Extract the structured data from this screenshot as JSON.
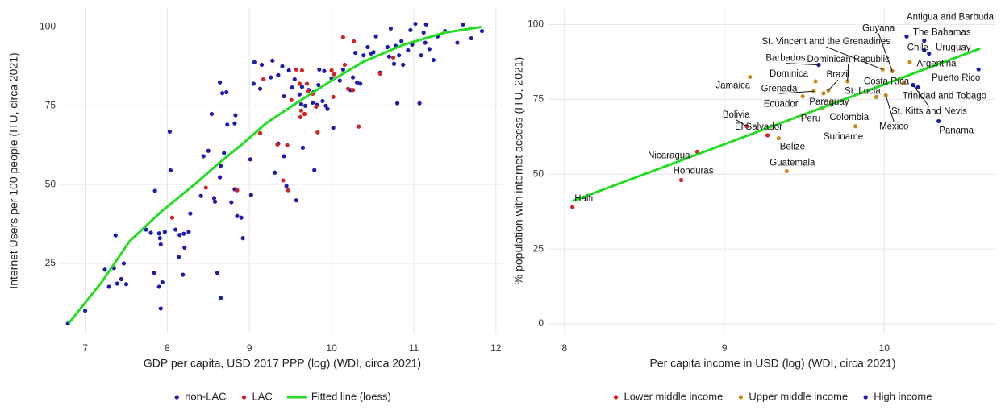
{
  "chart_data": [
    {
      "type": "scatter",
      "xlabel": "GDP per capita, USD 2017 PPP (log) (WDI, circa 2021)",
      "ylabel": "Internet Users per 100 people (ITU, circa 2021)",
      "xlim": [
        6.7,
        12.1
      ],
      "ylim": [
        2.5,
        106
      ],
      "xticks": [
        7,
        8,
        9,
        10,
        11,
        12
      ],
      "yticks": [
        25,
        50,
        75,
        100
      ],
      "grid": true,
      "series": [
        {
          "name": "non-LAC",
          "color": "#1c1cb0",
          "x": [
            6.79,
            7.0,
            7.24,
            7.29,
            7.35,
            7.37,
            7.39,
            7.44,
            7.47,
            7.5,
            7.74,
            7.8,
            7.84,
            7.85,
            7.9,
            7.9,
            7.91,
            7.92,
            7.92,
            7.94,
            7.97,
            8.03,
            8.04,
            8.1,
            8.14,
            8.15,
            8.19,
            8.2,
            8.21,
            8.26,
            8.28,
            8.41,
            8.44,
            8.5,
            8.54,
            8.57,
            8.58,
            8.61,
            8.64,
            8.64,
            8.65,
            8.65,
            8.67,
            8.69,
            8.72,
            8.73,
            8.78,
            8.82,
            8.82,
            8.83,
            8.85,
            8.9,
            8.92,
            9.01,
            9.02,
            9.05,
            9.06,
            9.13,
            9.15,
            9.26,
            9.28,
            9.31,
            9.35,
            9.35,
            9.4,
            9.42,
            9.42,
            9.45,
            9.48,
            9.52,
            9.55,
            9.57,
            9.61,
            9.63,
            9.64,
            9.65,
            9.68,
            9.72,
            9.77,
            9.78,
            9.79,
            9.82,
            9.84,
            9.85,
            9.89,
            9.91,
            9.93,
            9.95,
            10.0,
            10.02,
            10.1,
            10.14,
            10.23,
            10.26,
            10.29,
            10.31,
            10.35,
            10.39,
            10.44,
            10.48,
            10.51,
            10.54,
            10.59,
            10.68,
            10.7,
            10.72,
            10.76,
            10.78,
            10.8,
            10.82,
            10.85,
            10.87,
            10.93,
            10.96,
            10.98,
            11.02,
            11.07,
            11.09,
            11.12,
            11.14,
            11.15,
            11.19,
            11.24,
            11.29,
            11.38,
            11.53,
            11.6,
            11.7,
            11.83
          ],
          "values": [
            5.9,
            10,
            23,
            17.6,
            23.5,
            33.9,
            18.6,
            20,
            25,
            18.4,
            35.7,
            34.7,
            22,
            48,
            34.5,
            17.6,
            33,
            10.7,
            31,
            19,
            35,
            66.8,
            54.5,
            35.7,
            27,
            34,
            21.4,
            34.4,
            30,
            35,
            40.8,
            46.4,
            59,
            60.7,
            72.4,
            45.7,
            44.6,
            22,
            52.3,
            82.4,
            14,
            56,
            79,
            60,
            79.3,
            69,
            44.4,
            69.4,
            48.5,
            72,
            40,
            39.5,
            33,
            58,
            46.7,
            82,
            88.8,
            80.4,
            88,
            84,
            89.3,
            53.8,
            84.7,
            63,
            87.5,
            78,
            59,
            49.5,
            86.2,
            80.8,
            83.4,
            45,
            78.6,
            75.5,
            81,
            61.7,
            75,
            80,
            76,
            79.3,
            54.6,
            75.3,
            81.6,
            86.5,
            76.5,
            86,
            75,
            74,
            83.7,
            68,
            83,
            86.5,
            80,
            84,
            91.8,
            82.4,
            82,
            91,
            93.6,
            91.6,
            92,
            97,
            85.5,
            93.6,
            90.6,
            99.5,
            88.3,
            94,
            75.8,
            91,
            95.5,
            88,
            92.6,
            99,
            94.4,
            101,
            75.8,
            91,
            98.2,
            95,
            100.8,
            93,
            89.5,
            97,
            98.7,
            95,
            100.8,
            96.4,
            98.7
          ]
        },
        {
          "name": "LAC",
          "color": "#d42222",
          "x": [
            8.06,
            8.47,
            8.85,
            9.13,
            9.17,
            9.34,
            9.41,
            9.46,
            9.47,
            9.51,
            9.57,
            9.61,
            9.62,
            9.63,
            9.64,
            9.67,
            9.7,
            9.71,
            9.77,
            9.81,
            9.83,
            10.0,
            10.02,
            10.03,
            10.14,
            10.16,
            10.2,
            10.26,
            10.27,
            10.33,
            10.59,
            10.75
          ],
          "values": [
            39.5,
            49,
            48.2,
            66.3,
            83.4,
            62.7,
            51.3,
            62.5,
            48.2,
            76.8,
            86.5,
            82,
            71.4,
            73.5,
            86.2,
            72.4,
            82,
            79.6,
            78.8,
            74.7,
            66.6,
            86.2,
            77.8,
            85,
            96.7,
            88,
            80.4,
            80,
            95.4,
            68.4,
            85.2,
            90.3
          ]
        },
        {
          "name": "Fitted line (loess)",
          "type": "line",
          "color": "#22dd22",
          "x": [
            6.8,
            7.2,
            7.54,
            7.93,
            8.33,
            8.62,
            8.92,
            9.21,
            9.61,
            10.0,
            10.39,
            10.88,
            11.38,
            11.82
          ],
          "values": [
            6,
            19,
            32,
            41.5,
            50,
            56.6,
            63,
            69.6,
            76.5,
            83,
            89,
            94.4,
            98.2,
            100
          ]
        }
      ]
    },
    {
      "type": "scatter",
      "xlabel": "Per capita income in USD (log) (WDI, circa 2021)",
      "ylabel": "% population with internet access (ITU, 2021)",
      "xlim": [
        7.9,
        10.7
      ],
      "ylim": [
        -3.5,
        105.5
      ],
      "xticks": [
        8,
        9,
        10
      ],
      "yticks": [
        0,
        25,
        50,
        75,
        100
      ],
      "grid": true,
      "series": [
        {
          "name": "Lower middle income",
          "color": "#d42222",
          "labels": [
            "Haiti",
            "Honduras",
            "Nicaragua",
            "El Salvador",
            "Bolivia"
          ],
          "x": [
            8.05,
            8.73,
            8.83,
            9.27,
            9.14
          ],
          "values": [
            39,
            48,
            57.5,
            63,
            66
          ]
        },
        {
          "name": "Upper middle income",
          "color": "#cc8a1e",
          "labels": [
            "Belize",
            "Guatemala",
            "Jamaica",
            "Dominica",
            "Grenada",
            "Ecuador",
            "Peru",
            "Paraguay",
            "Colombia",
            "Suriname",
            "Brazil",
            "Dominican Republic",
            "St. Vincent and the Grenadines",
            "Guyana",
            "Argentina",
            "Costa Rica",
            "St. Lucia",
            "Mexico"
          ],
          "x": [
            9.34,
            9.39,
            9.16,
            9.57,
            9.56,
            9.49,
            9.61,
            9.62,
            9.67,
            9.82,
            9.65,
            9.77,
            9.99,
            10.05,
            10.16,
            10.12,
            9.95,
            10.01
          ],
          "values": [
            62,
            51,
            82.5,
            81,
            77.7,
            76,
            72,
            77,
            73.7,
            66,
            78,
            81,
            85,
            84.4,
            87.4,
            80.4,
            75.8,
            76.3
          ]
        },
        {
          "name": "High income",
          "color": "#1c1cb0",
          "labels": [
            "Barbados",
            "Antigua and Barbuda",
            "The Bahamas",
            "Chile",
            "Uruguay",
            "St. Kitts and Nevis",
            "Trinidad and Tobago",
            "Puerto Rico",
            "Panama"
          ],
          "x": [
            9.59,
            10.14,
            10.25,
            10.25,
            10.28,
            10.18,
            10.21,
            10.59,
            10.34
          ],
          "values": [
            86.5,
            96,
            94.6,
            91.4,
            90.3,
            79.8,
            79,
            85,
            67.7
          ]
        },
        {
          "type": "line",
          "color": "#22dd22",
          "x": [
            8.05,
            10.6
          ],
          "values": [
            41,
            92
          ]
        }
      ]
    }
  ]
}
